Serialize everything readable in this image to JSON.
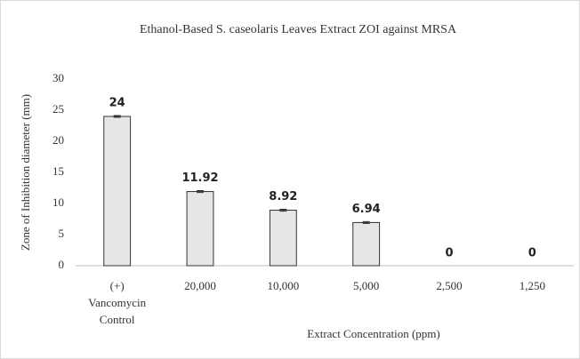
{
  "chart_data": {
    "type": "bar",
    "title": "Ethanol-Based S. caseolaris Leaves Extract ZOI against MRSA",
    "x_label": "Extract Concentration (ppm)",
    "y_label": "Zone of Inhibition diameter (mm)",
    "categories": [
      "(+) Vancomycin Control",
      "20,000",
      "10,000",
      "5,000",
      "2,500",
      "1,250"
    ],
    "values": [
      24,
      11.92,
      8.92,
      6.94,
      0,
      0
    ],
    "errors": [
      0.15,
      0.15,
      0.15,
      0.15,
      0,
      0
    ],
    "color": "#e6e6e6",
    "ylim": [
      0,
      30
    ],
    "yticks": [
      0,
      5,
      10,
      15,
      20,
      25,
      30
    ],
    "grid": false
  }
}
